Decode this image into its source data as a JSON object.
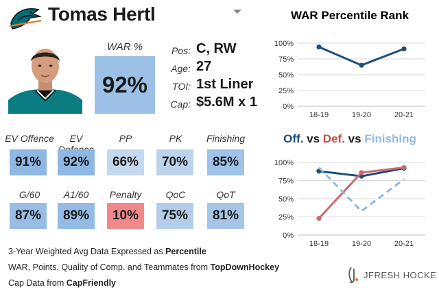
{
  "player": {
    "name": "Tomas Hertl",
    "war_label": "WAR %",
    "war_value": "92%",
    "info": [
      {
        "label": "Pos:",
        "value": "C, RW"
      },
      {
        "label": "Age:",
        "value": "27"
      },
      {
        "label": "TOI:",
        "value": "1st Liner"
      },
      {
        "label": "Cap:",
        "value": "$5.6M x 1"
      }
    ]
  },
  "metrics": [
    {
      "label": "EV Offence",
      "value": "91%",
      "color": "#8fb7e4"
    },
    {
      "label": "EV Defence",
      "value": "92%",
      "color": "#8fb7e4"
    },
    {
      "label": "PP",
      "value": "66%",
      "color": "#c5d9ee"
    },
    {
      "label": "PK",
      "value": "70%",
      "color": "#bcd3ec"
    },
    {
      "label": "Finishing",
      "value": "85%",
      "color": "#9ec2e8"
    },
    {
      "label": "G/60",
      "value": "87%",
      "color": "#98bde6"
    },
    {
      "label": "A1/60",
      "value": "89%",
      "color": "#94bbe5"
    },
    {
      "label": "Penalty",
      "value": "10%",
      "color": "#f08a8a"
    },
    {
      "label": "QoC",
      "value": "75%",
      "color": "#b3cdea"
    },
    {
      "label": "QoT",
      "value": "81%",
      "color": "#a6c5e8"
    }
  ],
  "footer": {
    "line1_text": "3-Year Weighted Avg Data Expressed as ",
    "line1_bold": "Percentile",
    "line2_text": "WAR, Points, Quality of Comp. and Teammates from ",
    "line2_bold": "TopDownHockey",
    "line3_text": "Cap Data from ",
    "line3_bold": "CapFriendly"
  },
  "brand": "JFRESH HOCKEY",
  "logo_icon": "sharks-logo-icon",
  "chart_data": [
    {
      "type": "line",
      "title": "WAR Percentile Rank",
      "categories": [
        "18-19",
        "19-20",
        "20-21"
      ],
      "ylim": [
        0,
        100
      ],
      "yticks": [
        "0%",
        "25%",
        "50%",
        "75%",
        "100%"
      ],
      "grid": true,
      "series": [
        {
          "values": [
            94,
            65,
            91
          ],
          "color": "#1f4e79"
        }
      ]
    },
    {
      "type": "line",
      "title_parts": [
        {
          "text": "Off.",
          "color": "#1f4e79"
        },
        {
          "text": " vs ",
          "color": "#1a1a1a"
        },
        {
          "text": "Def.",
          "color": "#c0504d"
        },
        {
          "text": " vs ",
          "color": "#1a1a1a"
        },
        {
          "text": "Finishing",
          "color": "#93b9dd"
        }
      ],
      "categories": [
        "18-19",
        "19-20",
        "20-21"
      ],
      "ylim": [
        0,
        100
      ],
      "yticks": [
        "0%",
        "25%",
        "50%",
        "75%",
        "100%"
      ],
      "grid": true,
      "series": [
        {
          "name": "Off.",
          "values": [
            88,
            81,
            92
          ],
          "color": "#1f4e79",
          "style": "solid"
        },
        {
          "name": "Def.",
          "values": [
            23,
            86,
            93
          ],
          "color": "#c96a70",
          "style": "solid"
        },
        {
          "name": "Finishing",
          "values": [
            93,
            33,
            77
          ],
          "color": "#93b9dd",
          "style": "dashed"
        }
      ]
    }
  ]
}
